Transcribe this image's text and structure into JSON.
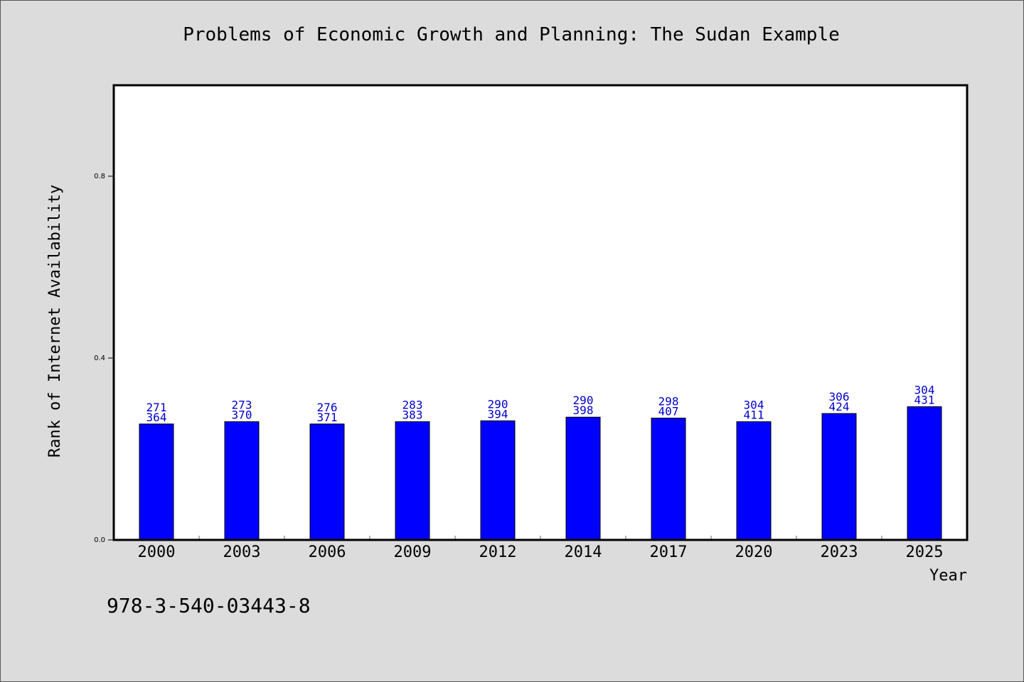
{
  "colors": {
    "background": "#dcdcdc",
    "plot_bg": "#ffffff",
    "bar": "#0000ff",
    "bar_label": "#0000cc",
    "axis": "#000000"
  },
  "footer": {
    "code": "978-3-540-03443-8"
  },
  "chart_data": {
    "type": "bar",
    "title": "Problems of Economic Growth and Planning: The Sudan Example",
    "xlabel": "Year",
    "ylabel": "Rank of Internet Availability",
    "ylim": [
      0,
      1.0
    ],
    "yticks": [
      0.0,
      0.4,
      0.8
    ],
    "ytick_labels": [
      "0.0",
      "0.4",
      "0.8"
    ],
    "grid": false,
    "categories": [
      "2000",
      "2003",
      "2006",
      "2009",
      "2012",
      "2014",
      "2017",
      "2020",
      "2023",
      "2025"
    ],
    "values": [
      0.255,
      0.26,
      0.255,
      0.26,
      0.262,
      0.27,
      0.268,
      0.26,
      0.278,
      0.293
    ],
    "labels_top": [
      "271",
      "273",
      "276",
      "283",
      "290",
      "290",
      "298",
      "304",
      "306",
      "304"
    ],
    "labels_bottom": [
      "364",
      "370",
      "371",
      "383",
      "394",
      "398",
      "407",
      "411",
      "424",
      "431"
    ]
  }
}
